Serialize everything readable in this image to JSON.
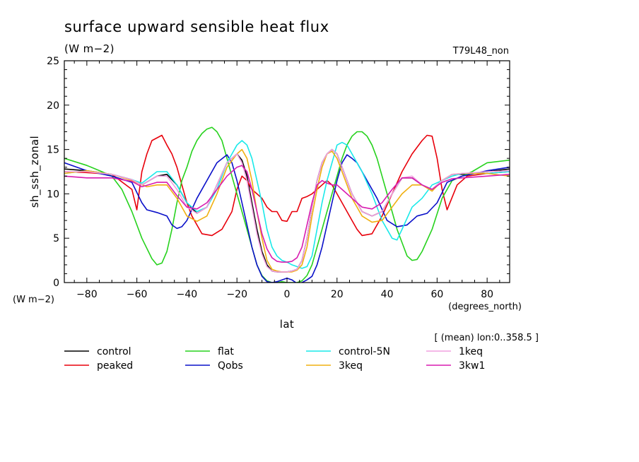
{
  "header": {
    "title": "surface upward sensible heat flux",
    "units": "(W m−2)",
    "run_id": "T79L48_non"
  },
  "chart_data": {
    "type": "line",
    "title": "surface upward sensible heat flux",
    "subtitle": "(W m−2)",
    "xlabel": "lat",
    "ylabel": "sh_ssh_zonal",
    "x_unit_label": "(degrees_north)",
    "y_unit_label": "(W m−2)",
    "averaging_note": "[ (mean) lon:0..358.5 ]",
    "xlim": [
      -89,
      89
    ],
    "ylim": [
      0,
      25
    ],
    "x_ticks": [
      -80,
      -60,
      -40,
      -20,
      0,
      20,
      40,
      60,
      80
    ],
    "x_tick_labels": [
      "−80",
      "−60",
      "−40",
      "−20",
      "0",
      "20",
      "40",
      "60",
      "80"
    ],
    "y_ticks": [
      0,
      5,
      10,
      15,
      20,
      25
    ],
    "y_tick_labels": [
      "0",
      "5",
      "10",
      "15",
      "20",
      "25"
    ],
    "grid": false,
    "legend_position": "bottom",
    "series": [
      {
        "name": "control",
        "color": "#000000",
        "x": [
          -89,
          -80,
          -70,
          -62,
          -58,
          -52,
          -48,
          -44,
          -40,
          -36,
          -32,
          -28,
          -24,
          -20,
          -18,
          -16,
          -14,
          -12,
          -10,
          -8,
          -6,
          -4,
          -2,
          0,
          2,
          4,
          6,
          8,
          10,
          12,
          14,
          16,
          18,
          20,
          22,
          26,
          30,
          34,
          38,
          42,
          46,
          50,
          54,
          58,
          62,
          66,
          70,
          80,
          89
        ],
        "y": [
          12.8,
          12.6,
          12.2,
          11.6,
          11.0,
          12.0,
          12.2,
          11.0,
          9.0,
          7.8,
          8.5,
          11.0,
          13.5,
          14.5,
          13.8,
          12.0,
          9.0,
          6.0,
          3.5,
          2.0,
          1.3,
          1.2,
          1.2,
          1.2,
          1.3,
          1.5,
          2.5,
          5.0,
          8.5,
          11.5,
          13.5,
          14.5,
          15.0,
          14.5,
          13.0,
          10.0,
          8.0,
          7.5,
          8.0,
          10.0,
          11.8,
          11.8,
          11.0,
          10.5,
          11.5,
          12.2,
          12.2,
          12.5,
          12.8
        ]
      },
      {
        "name": "peaked",
        "color": "#e8000b",
        "x": [
          -89,
          -80,
          -70,
          -62,
          -60,
          -58,
          -56,
          -54,
          -50,
          -48,
          -46,
          -44,
          -42,
          -40,
          -38,
          -36,
          -34,
          -30,
          -26,
          -22,
          -20,
          -18,
          -16,
          -14,
          -12,
          -10,
          -8,
          -6,
          -4,
          -2,
          0,
          2,
          4,
          6,
          8,
          10,
          12,
          14,
          16,
          18,
          20,
          22,
          24,
          26,
          28,
          30,
          34,
          38,
          42,
          46,
          50,
          54,
          56,
          58,
          60,
          62,
          64,
          68,
          72,
          80,
          89
        ],
        "y": [
          12.5,
          12.4,
          12.2,
          10.5,
          8.2,
          12.5,
          14.5,
          16.0,
          16.6,
          15.5,
          14.5,
          13.0,
          11.0,
          9.0,
          7.5,
          6.5,
          5.5,
          5.3,
          6.0,
          8.0,
          10.5,
          12.0,
          11.5,
          10.5,
          10.0,
          9.5,
          8.5,
          8.0,
          8.0,
          7.0,
          6.9,
          8.0,
          8.0,
          9.5,
          9.7,
          10.0,
          10.5,
          11.0,
          11.5,
          11.0,
          10.0,
          9.0,
          8.0,
          7.0,
          6.0,
          5.3,
          5.5,
          7.5,
          10.0,
          12.5,
          14.5,
          16.0,
          16.6,
          16.5,
          14.0,
          10.5,
          8.2,
          11.0,
          12.0,
          12.3,
          12.5
        ]
      },
      {
        "name": "flat",
        "color": "#27d21e",
        "x": [
          -89,
          -80,
          -74,
          -70,
          -66,
          -62,
          -58,
          -54,
          -52,
          -50,
          -48,
          -46,
          -44,
          -42,
          -40,
          -38,
          -36,
          -34,
          -32,
          -30,
          -28,
          -26,
          -24,
          -22,
          -20,
          -18,
          -16,
          -14,
          -12,
          -10,
          -8,
          -6,
          -4,
          -2,
          0,
          2,
          4,
          6,
          8,
          10,
          12,
          14,
          16,
          18,
          20,
          22,
          24,
          26,
          28,
          30,
          32,
          34,
          36,
          38,
          40,
          42,
          44,
          46,
          48,
          50,
          52,
          54,
          58,
          62,
          66,
          70,
          74,
          80,
          89
        ],
        "y": [
          14.0,
          13.2,
          12.5,
          12.0,
          10.5,
          8.0,
          5.0,
          2.7,
          2.0,
          2.2,
          3.5,
          6.0,
          9.0,
          11.5,
          13.0,
          14.8,
          16.0,
          16.8,
          17.3,
          17.5,
          17.0,
          16.0,
          14.0,
          12.0,
          10.0,
          8.0,
          6.0,
          4.0,
          2.0,
          0.8,
          0.2,
          0.0,
          0.0,
          0.1,
          0.0,
          0.0,
          0.0,
          0.2,
          0.8,
          2.0,
          4.0,
          6.0,
          8.0,
          10.0,
          12.0,
          14.0,
          15.5,
          16.5,
          17.0,
          17.0,
          16.5,
          15.5,
          14.0,
          12.0,
          10.0,
          8.0,
          6.0,
          4.5,
          3.0,
          2.5,
          2.6,
          3.5,
          6.0,
          9.5,
          11.5,
          12.0,
          12.5,
          13.5,
          13.8
        ]
      },
      {
        "name": "Qobs",
        "color": "#0a10c9",
        "x": [
          -89,
          -80,
          -70,
          -62,
          -58,
          -56,
          -52,
          -48,
          -46,
          -44,
          -42,
          -40,
          -36,
          -32,
          -28,
          -24,
          -22,
          -20,
          -18,
          -16,
          -14,
          -12,
          -10,
          -8,
          -6,
          -4,
          -2,
          0,
          2,
          4,
          6,
          8,
          10,
          12,
          14,
          16,
          18,
          20,
          22,
          24,
          26,
          28,
          32,
          36,
          40,
          44,
          48,
          52,
          56,
          60,
          64,
          70,
          80,
          89
        ],
        "y": [
          13.5,
          12.6,
          12.0,
          11.3,
          9.0,
          8.2,
          7.9,
          7.5,
          6.5,
          6.1,
          6.3,
          7.0,
          9.5,
          11.5,
          13.5,
          14.4,
          13.5,
          11.5,
          9.0,
          6.5,
          4.0,
          2.0,
          0.7,
          0.1,
          0.0,
          0.1,
          0.3,
          0.5,
          0.3,
          -0.1,
          0.0,
          0.3,
          0.7,
          2.0,
          4.0,
          6.5,
          9.0,
          11.5,
          13.5,
          14.4,
          14.0,
          13.5,
          11.5,
          9.5,
          7.0,
          6.3,
          6.5,
          7.5,
          7.8,
          9.0,
          11.3,
          12.0,
          12.6,
          13.0
        ]
      },
      {
        "name": "control-5N",
        "color": "#19e9e9",
        "x": [
          -89,
          -80,
          -70,
          -62,
          -58,
          -52,
          -48,
          -44,
          -40,
          -36,
          -32,
          -28,
          -24,
          -20,
          -18,
          -16,
          -14,
          -12,
          -10,
          -8,
          -6,
          -4,
          -2,
          0,
          2,
          4,
          6,
          8,
          10,
          12,
          14,
          16,
          18,
          20,
          22,
          24,
          26,
          30,
          34,
          38,
          42,
          44,
          46,
          50,
          54,
          58,
          62,
          66,
          70,
          80,
          89
        ],
        "y": [
          12.3,
          12.6,
          12.2,
          11.6,
          11.2,
          12.5,
          12.5,
          11.0,
          9.0,
          8.0,
          8.5,
          10.5,
          13.5,
          15.5,
          16.0,
          15.5,
          14.0,
          11.5,
          9.0,
          6.0,
          4.0,
          3.0,
          2.5,
          2.3,
          2.0,
          1.8,
          1.6,
          1.8,
          3.0,
          6.0,
          9.0,
          11.5,
          13.5,
          15.5,
          15.8,
          15.5,
          14.5,
          12.5,
          10.0,
          7.0,
          5.0,
          4.8,
          6.0,
          8.5,
          9.5,
          11.0,
          11.5,
          12.0,
          12.3,
          12.3,
          12.5
        ]
      },
      {
        "name": "3keq",
        "color": "#f0b010",
        "x": [
          -89,
          -80,
          -70,
          -62,
          -56,
          -52,
          -48,
          -44,
          -40,
          -36,
          -32,
          -28,
          -24,
          -20,
          -18,
          -16,
          -14,
          -12,
          -10,
          -8,
          -6,
          -4,
          -2,
          0,
          2,
          4,
          6,
          8,
          10,
          12,
          14,
          16,
          18,
          20,
          22,
          26,
          30,
          34,
          38,
          42,
          46,
          50,
          54,
          58,
          62,
          66,
          70,
          80,
          89
        ],
        "y": [
          12.3,
          12.6,
          12.2,
          11.5,
          10.8,
          11.0,
          11.0,
          9.5,
          7.5,
          6.9,
          7.5,
          10.0,
          13.0,
          14.5,
          15.0,
          14.0,
          11.5,
          8.0,
          5.0,
          2.5,
          1.5,
          1.3,
          1.2,
          1.2,
          1.2,
          1.4,
          2.0,
          4.0,
          7.5,
          10.5,
          13.0,
          14.5,
          14.8,
          14.0,
          12.5,
          9.5,
          7.5,
          6.8,
          7.0,
          8.5,
          10.0,
          11.0,
          11.0,
          10.3,
          11.5,
          12.2,
          12.3,
          12.3,
          12.0
        ]
      },
      {
        "name": "1keq",
        "color": "#f0a0e0",
        "x": [
          -89,
          -80,
          -70,
          -62,
          -58,
          -52,
          -48,
          -44,
          -40,
          -36,
          -32,
          -28,
          -24,
          -20,
          -18,
          -16,
          -14,
          -12,
          -10,
          -8,
          -6,
          -4,
          -2,
          0,
          2,
          4,
          6,
          8,
          10,
          12,
          14,
          16,
          18,
          20,
          22,
          26,
          30,
          34,
          38,
          42,
          46,
          50,
          54,
          58,
          62,
          66,
          70,
          80,
          89
        ],
        "y": [
          12.5,
          12.5,
          12.2,
          11.6,
          11.0,
          12.0,
          12.0,
          10.5,
          8.5,
          7.8,
          8.5,
          11.0,
          13.5,
          14.5,
          13.5,
          11.5,
          8.5,
          5.5,
          3.2,
          1.8,
          1.3,
          1.2,
          1.2,
          1.2,
          1.3,
          1.5,
          2.5,
          5.0,
          8.5,
          11.5,
          13.5,
          14.5,
          15.0,
          14.5,
          13.0,
          10.0,
          8.0,
          7.5,
          8.0,
          10.0,
          11.8,
          12.0,
          11.0,
          10.5,
          11.5,
          12.2,
          12.3,
          12.5,
          12.6
        ]
      },
      {
        "name": "3kw1",
        "color": "#d81bb0",
        "x": [
          -89,
          -80,
          -70,
          -62,
          -58,
          -52,
          -48,
          -44,
          -40,
          -36,
          -32,
          -28,
          -24,
          -20,
          -18,
          -16,
          -14,
          -12,
          -10,
          -8,
          -6,
          -4,
          -2,
          0,
          2,
          4,
          6,
          8,
          10,
          12,
          14,
          16,
          18,
          20,
          22,
          26,
          30,
          34,
          38,
          42,
          46,
          50,
          54,
          58,
          62,
          66,
          70,
          80,
          89
        ],
        "y": [
          12.0,
          11.8,
          11.8,
          11.4,
          10.8,
          11.3,
          11.3,
          9.8,
          8.5,
          8.3,
          9.0,
          10.5,
          12.0,
          13.0,
          13.2,
          12.5,
          10.5,
          8.0,
          5.5,
          3.8,
          2.8,
          2.4,
          2.3,
          2.3,
          2.4,
          2.8,
          4.0,
          6.5,
          9.0,
          11.0,
          11.5,
          11.2,
          11.0,
          11.0,
          10.5,
          9.5,
          8.5,
          8.3,
          9.0,
          10.5,
          11.8,
          11.8,
          11.0,
          10.5,
          11.3,
          11.7,
          11.8,
          12.0,
          12.2
        ]
      }
    ]
  }
}
